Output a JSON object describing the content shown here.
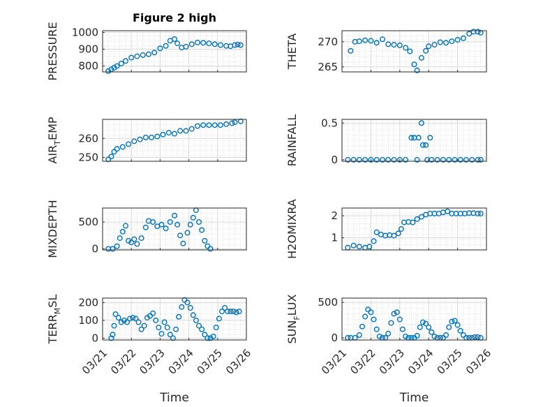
{
  "chart_data": [
    {
      "type": "scatter",
      "panel": "top-left",
      "title": "Figure 2 high",
      "ylabel": "PRESSURE",
      "xlabel": "",
      "ylim": [
        765,
        1010
      ],
      "yticks": [
        800,
        900,
        1000
      ],
      "xlim": [
        0,
        5
      ],
      "xticks": [],
      "grid": "on",
      "points": [
        [
          0.2,
          770
        ],
        [
          0.3,
          780
        ],
        [
          0.4,
          790
        ],
        [
          0.5,
          800
        ],
        [
          0.65,
          815
        ],
        [
          0.8,
          830
        ],
        [
          1.0,
          850
        ],
        [
          1.2,
          858
        ],
        [
          1.4,
          865
        ],
        [
          1.6,
          870
        ],
        [
          1.8,
          880
        ],
        [
          2.0,
          905
        ],
        [
          2.2,
          920
        ],
        [
          2.35,
          950
        ],
        [
          2.5,
          960
        ],
        [
          2.6,
          935
        ],
        [
          2.75,
          910
        ],
        [
          2.9,
          915
        ],
        [
          3.1,
          930
        ],
        [
          3.3,
          940
        ],
        [
          3.5,
          938
        ],
        [
          3.7,
          935
        ],
        [
          3.9,
          930
        ],
        [
          4.1,
          925
        ],
        [
          4.3,
          920
        ],
        [
          4.45,
          918
        ],
        [
          4.6,
          925
        ],
        [
          4.7,
          928
        ],
        [
          4.8,
          925
        ]
      ]
    },
    {
      "type": "scatter",
      "panel": "top-right",
      "title": "",
      "ylabel": "THETA",
      "xlabel": "",
      "ylim": [
        264,
        272.2
      ],
      "yticks": [
        265,
        270
      ],
      "xlim": [
        0,
        5
      ],
      "xticks": [],
      "grid": "on",
      "points": [
        [
          0.3,
          268.2
        ],
        [
          0.45,
          270
        ],
        [
          0.6,
          270.1
        ],
        [
          0.8,
          270.3
        ],
        [
          1.0,
          270.2
        ],
        [
          1.2,
          269.8
        ],
        [
          1.4,
          270.5
        ],
        [
          1.6,
          269.5
        ],
        [
          1.8,
          269.4
        ],
        [
          2.0,
          269.3
        ],
        [
          2.2,
          268.8
        ],
        [
          2.35,
          268.1
        ],
        [
          2.5,
          265.5
        ],
        [
          2.6,
          264.3
        ],
        [
          2.75,
          266.8
        ],
        [
          2.9,
          268.2
        ],
        [
          3.0,
          269.1
        ],
        [
          3.2,
          269.4
        ],
        [
          3.4,
          269.9
        ],
        [
          3.6,
          269.8
        ],
        [
          3.8,
          270.1
        ],
        [
          4.0,
          270.4
        ],
        [
          4.2,
          270.7
        ],
        [
          4.4,
          271.6
        ],
        [
          4.55,
          272
        ],
        [
          4.7,
          272
        ],
        [
          4.8,
          271.8
        ]
      ]
    },
    {
      "type": "scatter",
      "panel": "middle-left",
      "title": "",
      "ylabel": "AIR_TEMP",
      "xlabel": "",
      "ylim": [
        248,
        270
      ],
      "yticks": [
        250,
        260
      ],
      "xlim": [
        0,
        5
      ],
      "xticks": [],
      "grid": "on",
      "points": [
        [
          0.2,
          249
        ],
        [
          0.3,
          250.5
        ],
        [
          0.4,
          253
        ],
        [
          0.5,
          254.5
        ],
        [
          0.7,
          255.5
        ],
        [
          0.9,
          257
        ],
        [
          1.1,
          258.5
        ],
        [
          1.3,
          259.5
        ],
        [
          1.5,
          260.5
        ],
        [
          1.7,
          260.5
        ],
        [
          1.9,
          261
        ],
        [
          2.1,
          262
        ],
        [
          2.3,
          263
        ],
        [
          2.5,
          262.5
        ],
        [
          2.7,
          264
        ],
        [
          2.9,
          264
        ],
        [
          3.1,
          265
        ],
        [
          3.3,
          266.5
        ],
        [
          3.5,
          267
        ],
        [
          3.7,
          267
        ],
        [
          3.9,
          267
        ],
        [
          4.1,
          267
        ],
        [
          4.3,
          267.5
        ],
        [
          4.5,
          268
        ],
        [
          4.6,
          268.5
        ],
        [
          4.8,
          269
        ]
      ]
    },
    {
      "type": "scatter",
      "panel": "middle-right",
      "title": "",
      "ylabel": "RAINFALL",
      "xlabel": "",
      "ylim": [
        -0.02,
        0.55
      ],
      "yticks": [
        0,
        0.5
      ],
      "xlim": [
        0,
        5
      ],
      "xticks": [],
      "grid": "on",
      "points": [
        [
          0.2,
          0
        ],
        [
          0.4,
          0
        ],
        [
          0.6,
          0
        ],
        [
          0.8,
          0
        ],
        [
          1.0,
          0
        ],
        [
          1.2,
          0
        ],
        [
          1.4,
          0
        ],
        [
          1.6,
          0
        ],
        [
          1.8,
          0
        ],
        [
          2.0,
          0
        ],
        [
          2.2,
          0
        ],
        [
          2.4,
          0.3
        ],
        [
          2.5,
          0.3
        ],
        [
          2.6,
          0
        ],
        [
          2.65,
          0.3
        ],
        [
          2.75,
          0.5
        ],
        [
          2.8,
          0.2
        ],
        [
          2.9,
          0.2
        ],
        [
          2.95,
          0
        ],
        [
          3.05,
          0.3
        ],
        [
          3.1,
          0
        ],
        [
          3.3,
          0
        ],
        [
          3.5,
          0
        ],
        [
          3.7,
          0
        ],
        [
          3.9,
          0
        ],
        [
          4.1,
          0
        ],
        [
          4.3,
          0
        ],
        [
          4.5,
          0
        ],
        [
          4.7,
          0
        ],
        [
          4.8,
          0
        ]
      ]
    },
    {
      "type": "scatter",
      "panel": "lower-left",
      "title": "",
      "ylabel": "MIXDEPTH",
      "xlabel": "",
      "ylim": [
        -20,
        760
      ],
      "yticks": [
        0,
        500
      ],
      "xlim": [
        0,
        5
      ],
      "xticks": [],
      "grid": "on",
      "points": [
        [
          0.2,
          0
        ],
        [
          0.35,
          0
        ],
        [
          0.5,
          50
        ],
        [
          0.6,
          200
        ],
        [
          0.7,
          320
        ],
        [
          0.8,
          430
        ],
        [
          0.9,
          150
        ],
        [
          1.0,
          120
        ],
        [
          1.1,
          180
        ],
        [
          1.2,
          90
        ],
        [
          1.35,
          200
        ],
        [
          1.5,
          400
        ],
        [
          1.6,
          520
        ],
        [
          1.75,
          500
        ],
        [
          1.9,
          420
        ],
        [
          2.05,
          450
        ],
        [
          2.2,
          380
        ],
        [
          2.35,
          500
        ],
        [
          2.5,
          620
        ],
        [
          2.6,
          450
        ],
        [
          2.7,
          250
        ],
        [
          2.8,
          100
        ],
        [
          2.95,
          300
        ],
        [
          3.05,
          450
        ],
        [
          3.15,
          580
        ],
        [
          3.25,
          720
        ],
        [
          3.35,
          500
        ],
        [
          3.45,
          350
        ],
        [
          3.55,
          150
        ],
        [
          3.65,
          50
        ],
        [
          3.75,
          0
        ]
      ]
    },
    {
      "type": "scatter",
      "panel": "lower-right",
      "title": "",
      "ylabel": "H2OMIXRA",
      "xlabel": "",
      "ylim": [
        0.45,
        2.35
      ],
      "yticks": [
        1,
        2
      ],
      "xlim": [
        0,
        5
      ],
      "xticks": [],
      "grid": "on",
      "points": [
        [
          0.2,
          0.55
        ],
        [
          0.4,
          0.65
        ],
        [
          0.6,
          0.6
        ],
        [
          0.8,
          0.55
        ],
        [
          0.95,
          0.6
        ],
        [
          1.1,
          0.85
        ],
        [
          1.2,
          1.25
        ],
        [
          1.35,
          1.15
        ],
        [
          1.5,
          1.1
        ],
        [
          1.65,
          1.12
        ],
        [
          1.8,
          1.1
        ],
        [
          1.95,
          1.2
        ],
        [
          2.05,
          1.4
        ],
        [
          2.15,
          1.7
        ],
        [
          2.3,
          1.72
        ],
        [
          2.45,
          1.7
        ],
        [
          2.6,
          1.85
        ],
        [
          2.75,
          1.95
        ],
        [
          2.9,
          2.05
        ],
        [
          3.05,
          2.1
        ],
        [
          3.2,
          2.1
        ],
        [
          3.35,
          2.1
        ],
        [
          3.5,
          2.15
        ],
        [
          3.65,
          2.2
        ],
        [
          3.8,
          2.1
        ],
        [
          3.95,
          2.1
        ],
        [
          4.1,
          2.1
        ],
        [
          4.25,
          2.1
        ],
        [
          4.4,
          2.12
        ],
        [
          4.55,
          2.12
        ],
        [
          4.7,
          2.1
        ],
        [
          4.8,
          2.1
        ]
      ]
    },
    {
      "type": "scatter",
      "panel": "bottom-left",
      "title": "",
      "ylabel": "TERR_MSL",
      "xlabel": "Time",
      "ylim": [
        -10,
        225
      ],
      "yticks": [
        0,
        100,
        200
      ],
      "xlim": [
        0,
        5
      ],
      "xticks": [
        "03/21",
        "03/22",
        "03/23",
        "03/24",
        "03/25",
        "03/26"
      ],
      "grid": "on",
      "points": [
        [
          0.3,
          0
        ],
        [
          0.35,
          20
        ],
        [
          0.4,
          70
        ],
        [
          0.45,
          135
        ],
        [
          0.55,
          115
        ],
        [
          0.65,
          90
        ],
        [
          0.75,
          100
        ],
        [
          0.85,
          90
        ],
        [
          0.95,
          110
        ],
        [
          1.05,
          115
        ],
        [
          1.15,
          110
        ],
        [
          1.25,
          90
        ],
        [
          1.35,
          50
        ],
        [
          1.45,
          70
        ],
        [
          1.55,
          115
        ],
        [
          1.65,
          125
        ],
        [
          1.75,
          140
        ],
        [
          1.85,
          100
        ],
        [
          1.95,
          60
        ],
        [
          2.05,
          25
        ],
        [
          2.15,
          90
        ],
        [
          2.25,
          60
        ],
        [
          2.35,
          20
        ],
        [
          2.45,
          0
        ],
        [
          2.55,
          50
        ],
        [
          2.65,
          120
        ],
        [
          2.75,
          175
        ],
        [
          2.85,
          215
        ],
        [
          2.95,
          200
        ],
        [
          3.05,
          170
        ],
        [
          3.15,
          130
        ],
        [
          3.25,
          100
        ],
        [
          3.35,
          70
        ],
        [
          3.45,
          50
        ],
        [
          3.55,
          20
        ],
        [
          3.65,
          0
        ],
        [
          3.75,
          0
        ],
        [
          3.85,
          10
        ],
        [
          3.95,
          60
        ],
        [
          4.05,
          110
        ],
        [
          4.15,
          150
        ],
        [
          4.25,
          170
        ],
        [
          4.35,
          150
        ],
        [
          4.45,
          150
        ],
        [
          4.55,
          150
        ],
        [
          4.65,
          145
        ],
        [
          4.75,
          150
        ]
      ]
    },
    {
      "type": "scatter",
      "panel": "bottom-right",
      "title": "",
      "ylabel": "SUN_FLUX",
      "xlabel": "Time",
      "ylim": [
        -30,
        560
      ],
      "yticks": [
        0,
        500
      ],
      "xlim": [
        0,
        5
      ],
      "xticks": [
        "03/21",
        "03/22",
        "03/23",
        "03/24",
        "03/25",
        "03/26"
      ],
      "grid": "on",
      "points": [
        [
          0.2,
          0
        ],
        [
          0.3,
          0
        ],
        [
          0.45,
          0
        ],
        [
          0.6,
          40
        ],
        [
          0.7,
          160
        ],
        [
          0.8,
          300
        ],
        [
          0.9,
          400
        ],
        [
          1.0,
          360
        ],
        [
          1.1,
          260
        ],
        [
          1.2,
          120
        ],
        [
          1.3,
          20
        ],
        [
          1.4,
          0
        ],
        [
          1.5,
          0
        ],
        [
          1.6,
          60
        ],
        [
          1.7,
          210
        ],
        [
          1.8,
          340
        ],
        [
          1.9,
          360
        ],
        [
          2.0,
          260
        ],
        [
          2.1,
          120
        ],
        [
          2.2,
          20
        ],
        [
          2.3,
          0
        ],
        [
          2.4,
          0
        ],
        [
          2.5,
          0
        ],
        [
          2.6,
          30
        ],
        [
          2.7,
          150
        ],
        [
          2.8,
          220
        ],
        [
          2.9,
          200
        ],
        [
          3.0,
          150
        ],
        [
          3.1,
          80
        ],
        [
          3.2,
          20
        ],
        [
          3.3,
          0
        ],
        [
          3.4,
          0
        ],
        [
          3.5,
          0
        ],
        [
          3.6,
          40
        ],
        [
          3.7,
          150
        ],
        [
          3.8,
          230
        ],
        [
          3.9,
          240
        ],
        [
          4.0,
          180
        ],
        [
          4.1,
          100
        ],
        [
          4.2,
          40
        ],
        [
          4.3,
          0
        ],
        [
          4.4,
          0
        ],
        [
          4.5,
          0
        ],
        [
          4.6,
          10
        ],
        [
          4.7,
          10
        ],
        [
          4.8,
          0
        ]
      ]
    }
  ],
  "colors": {
    "marker": "#0072bd",
    "axis": "#262626",
    "grid": "#d9d9d9"
  }
}
